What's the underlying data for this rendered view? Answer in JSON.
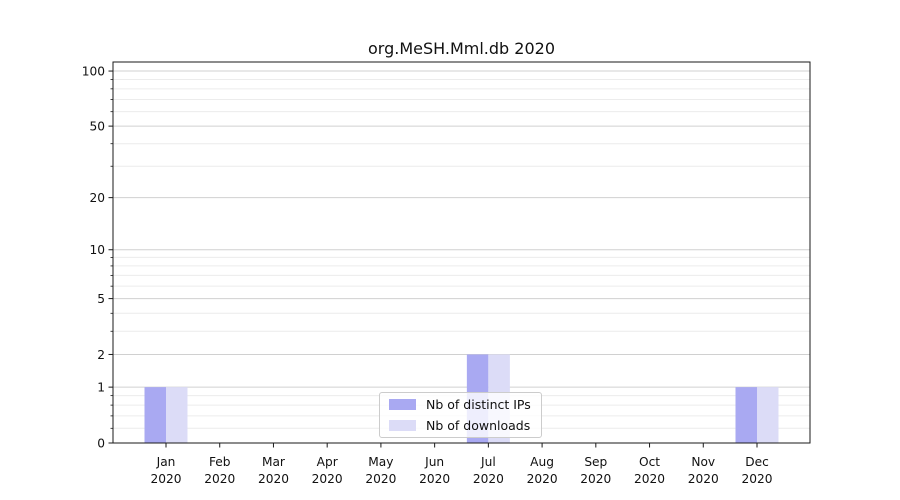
{
  "chart_data": {
    "type": "bar",
    "title": "org.MeSH.Mml.db 2020",
    "categories": [
      "Jan 2020",
      "Feb 2020",
      "Mar 2020",
      "Apr 2020",
      "May 2020",
      "Jun 2020",
      "Jul 2020",
      "Aug 2020",
      "Sep 2020",
      "Oct 2020",
      "Nov 2020",
      "Dec 2020"
    ],
    "series": [
      {
        "name": "Nb of distinct IPs",
        "color": "#a9a9f2",
        "values": [
          1,
          0,
          0,
          0,
          0,
          0,
          2,
          0,
          0,
          0,
          0,
          1
        ]
      },
      {
        "name": "Nb of downloads",
        "color": "#dcdcf7",
        "values": [
          1,
          0,
          0,
          0,
          0,
          0,
          2,
          0,
          0,
          0,
          0,
          1
        ]
      }
    ],
    "xlabel": "",
    "ylabel": "",
    "yscale": "log1p",
    "ylim": [
      0,
      112
    ],
    "yticks": [
      0,
      1,
      2,
      5,
      10,
      20,
      50,
      100
    ],
    "yticks_minor": [
      0.2,
      0.4,
      0.6,
      0.8,
      3,
      4,
      6,
      7,
      8,
      9,
      30,
      40,
      60,
      70,
      80,
      90
    ],
    "grid": true,
    "legend_position": "lower center",
    "colors": {
      "grid_major": "#d0d0d0",
      "grid_minor": "#ececec",
      "spine": "#1a1a1a",
      "text": "#111111"
    }
  }
}
